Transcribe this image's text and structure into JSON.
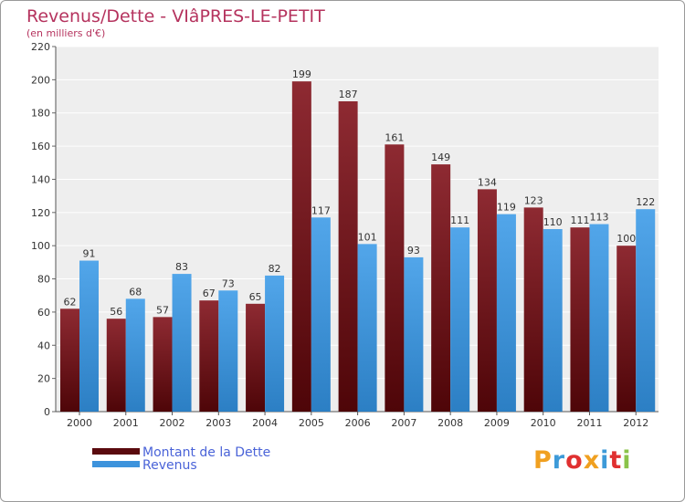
{
  "chart_data": {
    "type": "bar",
    "title": "Revenus/Dette - VIâPRES-LE-PETIT",
    "subtitle": "(en milliers d'€)",
    "categories": [
      "2000",
      "2001",
      "2002",
      "2003",
      "2004",
      "2005",
      "2006",
      "2007",
      "2008",
      "2009",
      "2010",
      "2011",
      "2012"
    ],
    "series": [
      {
        "name": "Montant de la Dette",
        "color": "#7a1d25",
        "values": [
          62,
          56,
          57,
          67,
          65,
          199,
          187,
          161,
          149,
          134,
          123,
          111,
          100
        ]
      },
      {
        "name": "Revenus",
        "color": "#3d93dc",
        "values": [
          91,
          68,
          83,
          73,
          82,
          117,
          101,
          93,
          111,
          119,
          110,
          113,
          122
        ]
      }
    ],
    "ylim": [
      0,
      220
    ],
    "yticks": [
      0,
      20,
      40,
      60,
      80,
      100,
      120,
      140,
      160,
      180,
      200,
      220
    ],
    "grid": true,
    "legend": "bottom-left"
  },
  "logo": {
    "text": "Proxiti",
    "colors": [
      "#f0a020",
      "#3d9ad8",
      "#e03030",
      "#f0a020",
      "#3d9ad8",
      "#e03030",
      "#8bc34a"
    ]
  }
}
